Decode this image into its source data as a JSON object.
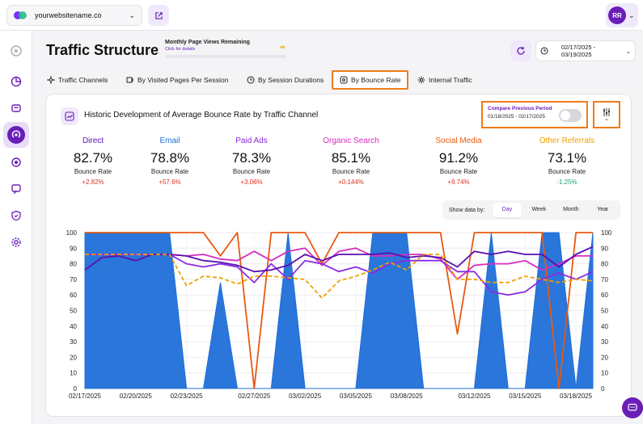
{
  "topbar": {
    "site_name": "yourwebsitename.co",
    "avatar_initials": "RR"
  },
  "header": {
    "title": "Traffic Structure",
    "quota_label": "Monthly Page Views Remaining",
    "quota_link": "Click for details",
    "quota_value": "∞",
    "date_range": "02/17/2025 - 03/19/2025"
  },
  "tabs": [
    {
      "label": "Traffic Channels",
      "icon": "channels-icon"
    },
    {
      "label": "By Visited Pages Per Session",
      "icon": "pages-icon"
    },
    {
      "label": "By Session Durations",
      "icon": "duration-icon"
    },
    {
      "label": "By Bounce Rate",
      "icon": "bounce-icon",
      "selected": true
    },
    {
      "label": "Internal Traffic",
      "icon": "internal-icon"
    }
  ],
  "card": {
    "title": "Historic Development of Average Bounce Rate by Traffic Channel",
    "compare_label": "Compare Previous Period",
    "compare_dates": "01/18/2025 - 02/17/2025",
    "compare_enabled": false
  },
  "stats": [
    {
      "name": "Direct",
      "value": "82.7%",
      "label": "Bounce Rate",
      "delta": "+2.82%",
      "color": "#5b0fb0",
      "delta_color": "#e0301e"
    },
    {
      "name": "Email",
      "value": "78.8%",
      "label": "Bounce Rate",
      "delta": "+57.6%",
      "color": "#1f6fd8",
      "delta_color": "#e0301e"
    },
    {
      "name": "Paid Ads",
      "value": "78.3%",
      "label": "Bounce Rate",
      "delta": "+3.06%",
      "color": "#8a2be2",
      "delta_color": "#e0301e"
    },
    {
      "name": "Organic Search",
      "value": "85.1%",
      "label": "Bounce Rate",
      "delta": "+0.144%",
      "color": "#d62ec0",
      "delta_color": "#e0301e"
    },
    {
      "name": "Social Media",
      "value": "91.2%",
      "label": "Bounce Rate",
      "delta": "+9.74%",
      "color": "#e85a10",
      "delta_color": "#e0301e"
    },
    {
      "name": "Other Referrals",
      "value": "73.1%",
      "label": "Bounce Rate",
      "delta": "-1.25%",
      "color": "#f0a000",
      "delta_color": "#1aa06a"
    }
  ],
  "granularity": {
    "label": "Show data by:",
    "options": [
      "Day",
      "Week",
      "Month",
      "Year"
    ],
    "active": "Day"
  },
  "chart_data": {
    "type": "area",
    "ylim": [
      0,
      100
    ],
    "yticks": [
      0,
      10,
      20,
      30,
      40,
      50,
      60,
      70,
      80,
      90,
      100
    ],
    "xtick_labels": [
      "02/17/2025",
      "02/20/2025",
      "02/23/2025",
      "02/27/2025",
      "03/02/2025",
      "03/05/2025",
      "03/08/2025",
      "03/12/2025",
      "03/15/2025",
      "03/18/2025"
    ],
    "xtick_index": [
      0,
      3,
      6,
      10,
      13,
      16,
      19,
      23,
      26,
      29
    ],
    "x": [
      "02/17/2025",
      "02/18/2025",
      "02/19/2025",
      "02/20/2025",
      "02/21/2025",
      "02/22/2025",
      "02/23/2025",
      "02/24/2025",
      "02/25/2025",
      "02/26/2025",
      "02/27/2025",
      "02/28/2025",
      "03/01/2025",
      "03/02/2025",
      "03/03/2025",
      "03/04/2025",
      "03/05/2025",
      "03/06/2025",
      "03/07/2025",
      "03/08/2025",
      "03/09/2025",
      "03/10/2025",
      "03/11/2025",
      "03/12/2025",
      "03/13/2025",
      "03/14/2025",
      "03/15/2025",
      "03/16/2025",
      "03/17/2025",
      "03/18/2025",
      "03/19/2025"
    ],
    "series": [
      {
        "name": "Email",
        "type": "area",
        "color": "#1f6fd8",
        "values": [
          100,
          100,
          100,
          100,
          100,
          100,
          0,
          0,
          68,
          0,
          0,
          0,
          100,
          0,
          0,
          0,
          0,
          100,
          100,
          100,
          0,
          0,
          0,
          0,
          100,
          0,
          0,
          100,
          100,
          0,
          100
        ]
      },
      {
        "name": "Social Media",
        "type": "line",
        "color": "#e85a10",
        "values": [
          100,
          100,
          100,
          100,
          100,
          100,
          100,
          100,
          85,
          100,
          0,
          100,
          100,
          100,
          80,
          100,
          100,
          100,
          100,
          100,
          100,
          100,
          35,
          100,
          100,
          100,
          100,
          100,
          0,
          100,
          100
        ]
      },
      {
        "name": "Organic Search",
        "type": "line",
        "color": "#d62ec0",
        "values": [
          86,
          86,
          86,
          86,
          86,
          86,
          85,
          86,
          83,
          82,
          88,
          82,
          88,
          90,
          79,
          88,
          90,
          85,
          85,
          86,
          86,
          83,
          70,
          79,
          80,
          80,
          82,
          76,
          80,
          85,
          85
        ]
      },
      {
        "name": "Paid Ads",
        "type": "line",
        "color": "#8a2be2",
        "values": [
          86,
          86,
          86,
          86,
          86,
          86,
          80,
          78,
          80,
          78,
          68,
          80,
          70,
          82,
          80,
          75,
          78,
          74,
          80,
          82,
          82,
          82,
          75,
          75,
          62,
          60,
          62,
          70,
          74,
          70,
          75
        ]
      },
      {
        "name": "Direct",
        "type": "line",
        "color": "#5b0fb0",
        "values": [
          76,
          84,
          85,
          82,
          86,
          86,
          85,
          82,
          81,
          79,
          75,
          76,
          79,
          86,
          82,
          86,
          86,
          86,
          87,
          84,
          85,
          84,
          78,
          88,
          86,
          88,
          86,
          86,
          78,
          86,
          91
        ]
      },
      {
        "name": "Other Referrals",
        "type": "line",
        "color": "#f0a000",
        "dashed": true,
        "values": [
          86,
          86,
          86,
          86,
          86,
          86,
          66,
          72,
          71,
          67,
          72,
          72,
          71,
          70,
          58,
          69,
          72,
          76,
          81,
          76,
          86,
          86,
          70,
          70,
          68,
          68,
          72,
          70,
          68,
          70,
          69
        ]
      }
    ]
  }
}
